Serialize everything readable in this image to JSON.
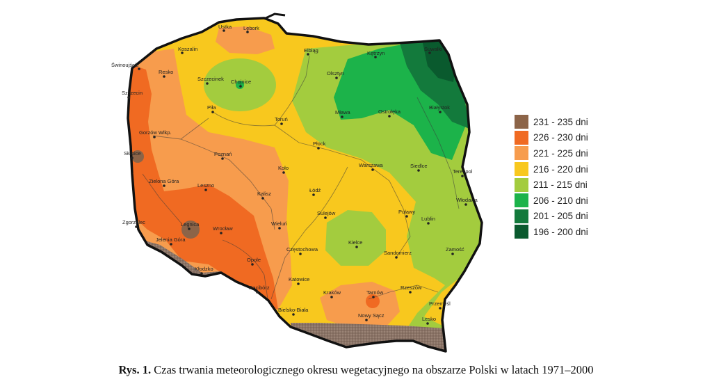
{
  "legend": {
    "items": [
      {
        "label": "231 - 235 dni",
        "color": "#8c6448"
      },
      {
        "label": "226 - 230 dni",
        "color": "#f06a22"
      },
      {
        "label": "221 - 225 dni",
        "color": "#f79c4d"
      },
      {
        "label": "216 - 220 dni",
        "color": "#f8c81e"
      },
      {
        "label": "211 - 215 dni",
        "color": "#a3cc3e"
      },
      {
        "label": "206 - 210 dni",
        "color": "#1cb34a"
      },
      {
        "label": "201 - 205 dni",
        "color": "#137a3c"
      },
      {
        "label": "196 - 200 dni",
        "color": "#0a5a2e"
      }
    ]
  },
  "caption": {
    "label": "Rys. 1.",
    "text": "Czas trwania meteorologicznego okresu wegetacyjnego na obszarze Polski w latach 1971–2000"
  },
  "cities": [
    "Ustka",
    "Lębork",
    "Koszalin",
    "Elbląg",
    "Kętrzyn",
    "Suwałki",
    "Świnoujście",
    "Resko",
    "Szczecinek",
    "Chojnice",
    "Olsztyn",
    "Szczecin",
    "Piła",
    "Toruń",
    "Mława",
    "Ostrołęka",
    "Białystok",
    "Gorzów Wlkp.",
    "Płock",
    "Słubice",
    "Poznań",
    "Koło",
    "Warszawa",
    "Siedlce",
    "Terespol",
    "Zielona Góra",
    "Leszno",
    "Łódź",
    "Kalisz",
    "Włodawa",
    "Sulejów",
    "Puławy",
    "Lublin",
    "Zgorzelec",
    "Legnica",
    "Wrocław",
    "Wieluń",
    "Kielce",
    "Jelenia Góra",
    "Częstochowa",
    "Sandomierz",
    "Zamość",
    "Opole",
    "Kłodzko",
    "Katowice",
    "Racibórz",
    "Rzeszów",
    "Kraków",
    "Tarnów",
    "Przemyśl",
    "Bielsko-Biała",
    "Nowy Sącz",
    "Lesko"
  ]
}
